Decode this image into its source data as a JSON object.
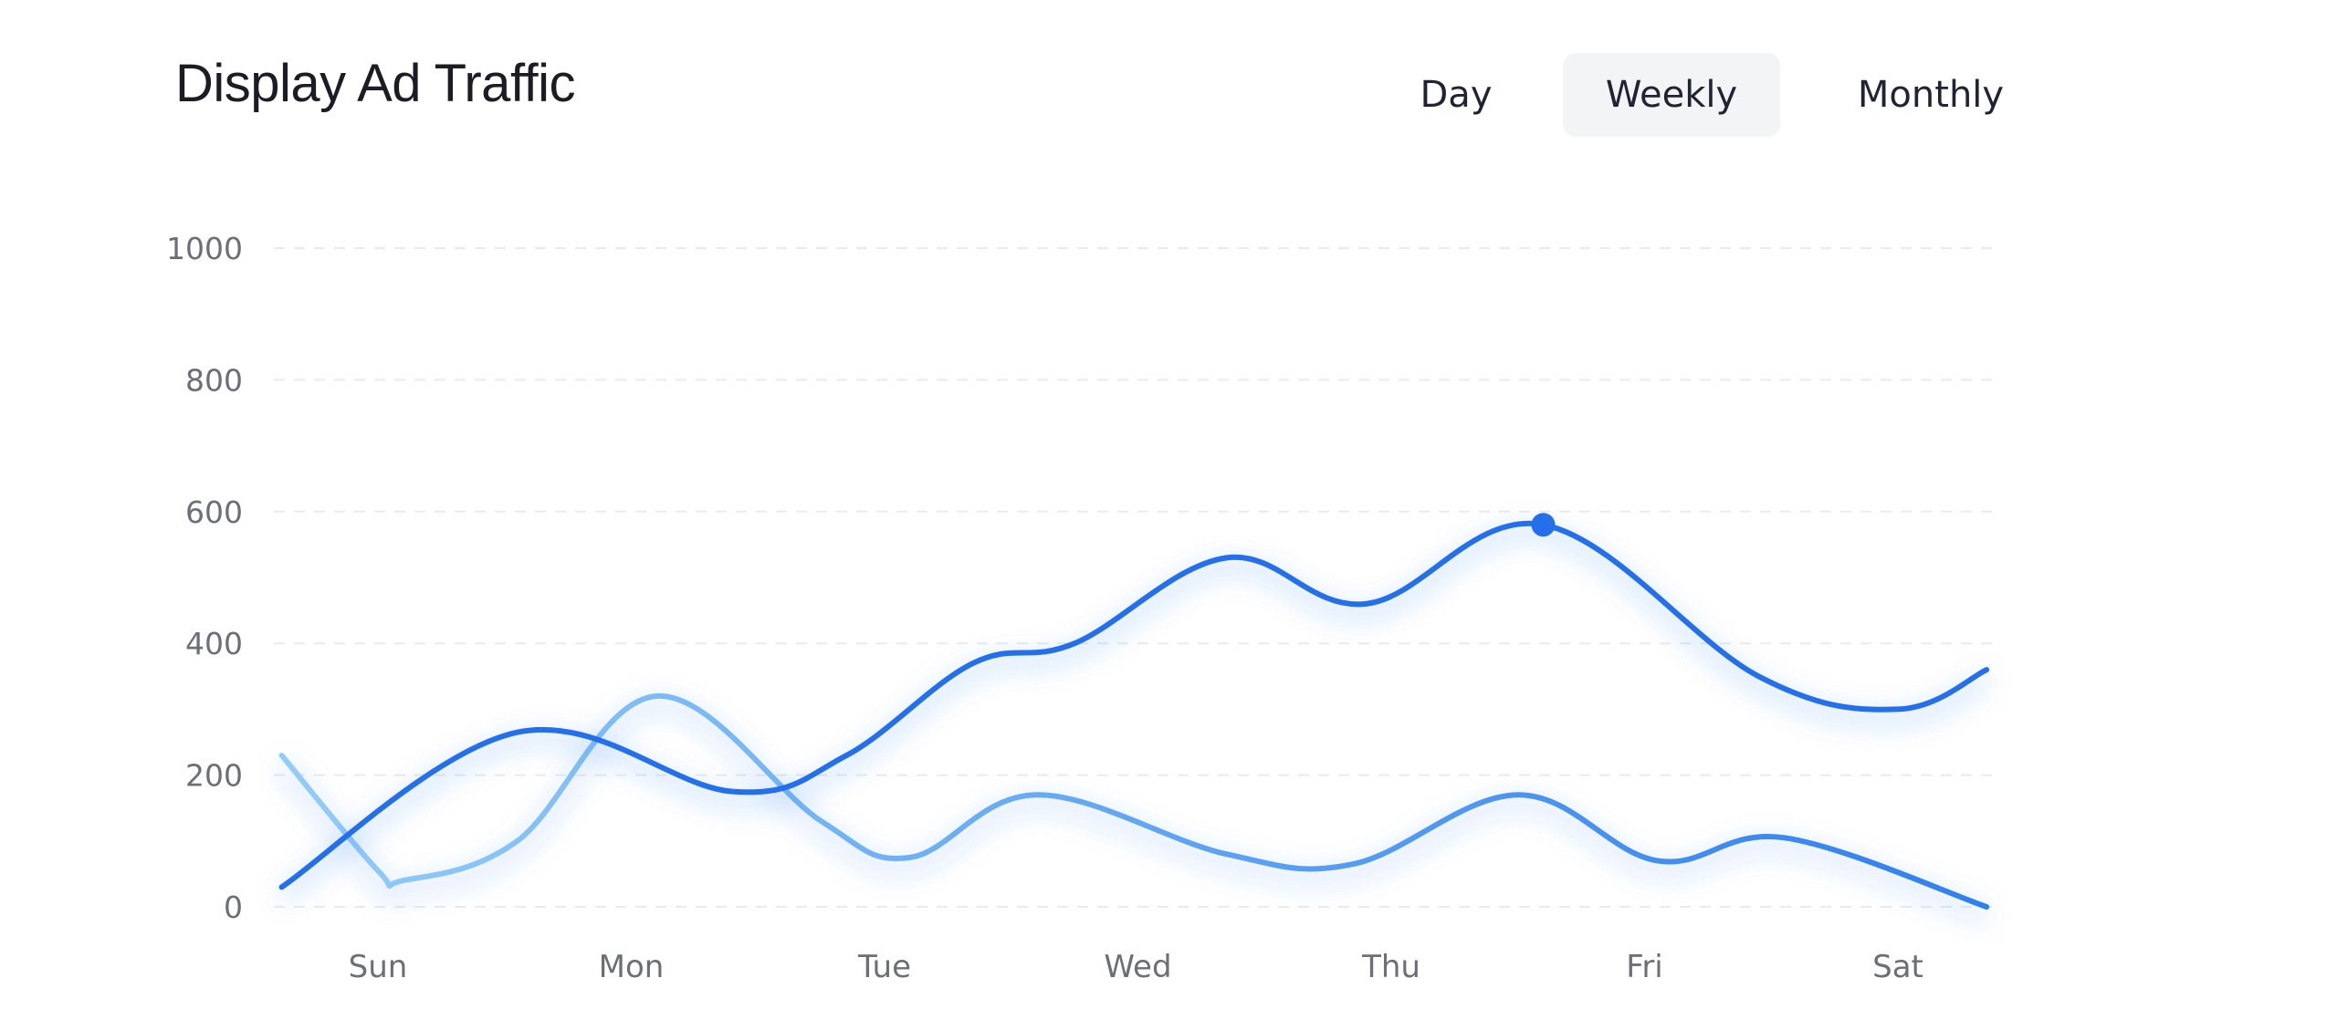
{
  "title": "Display Ad Traffic",
  "tabs": [
    {
      "label": "Day",
      "active": false
    },
    {
      "label": "Weekly",
      "active": true
    },
    {
      "label": "Monthly",
      "active": false
    }
  ],
  "colors": {
    "series_dark": "#2470ec",
    "series_light_start": "#93cdf8",
    "series_light_end": "#2f7ff0",
    "grid": "#e9ebef",
    "tab_active_bg": "#f3f4f6",
    "marker": "#2470ec"
  },
  "chart_data": {
    "type": "line",
    "title": "Display Ad Traffic",
    "xlabel": "",
    "ylabel": "",
    "ylim": [
      0,
      1000
    ],
    "yticks": [
      0,
      200,
      400,
      600,
      800,
      1000
    ],
    "categories": [
      "Sun",
      "Mon",
      "Tue",
      "Wed",
      "Thu",
      "Fri",
      "Sat"
    ],
    "grid": true,
    "smooth": true,
    "series": [
      {
        "style": "dark",
        "x": [
          -0.38,
          0.55,
          1.4,
          1.85,
          2.35,
          2.75,
          3.35,
          3.9,
          4.6,
          5.45,
          6.0,
          6.35
        ],
        "y": [
          30,
          265,
          175,
          230,
          370,
          400,
          530,
          460,
          580,
          350,
          300,
          360
        ]
      },
      {
        "style": "light",
        "x": [
          -0.38,
          0.0,
          0.1,
          0.55,
          1.1,
          1.75,
          2.1,
          2.6,
          3.35,
          3.85,
          4.5,
          5.05,
          5.55,
          6.35
        ],
        "y": [
          230,
          55,
          40,
          100,
          320,
          130,
          75,
          170,
          80,
          65,
          170,
          70,
          105,
          0
        ]
      }
    ],
    "highlight": {
      "series": 0,
      "x": 4.6,
      "y": 580
    }
  }
}
